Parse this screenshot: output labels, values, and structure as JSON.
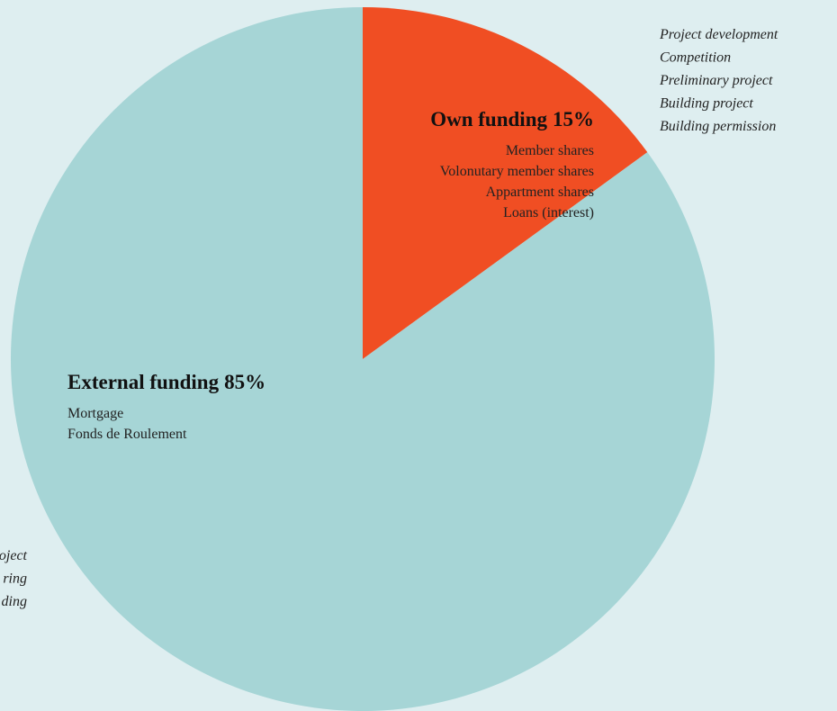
{
  "chart_data": {
    "type": "pie",
    "categories": [
      "Own funding",
      "External funding"
    ],
    "values": [
      15,
      85
    ],
    "value_labels": [
      "15%",
      "85%"
    ],
    "colors": [
      "#f04e23",
      "#a6d5d6"
    ],
    "items": [
      [
        "Member shares",
        "Volonutary member shares",
        "Appartment shares",
        "Loans (interest)"
      ],
      [
        "Mortgage",
        "Fonds de Roulement"
      ]
    ],
    "annotations": [
      "Project development",
      "Competition",
      "Preliminary project",
      "Building project",
      "Building permission"
    ],
    "annotations_cut": [
      "oject",
      "ring",
      "ding"
    ]
  }
}
